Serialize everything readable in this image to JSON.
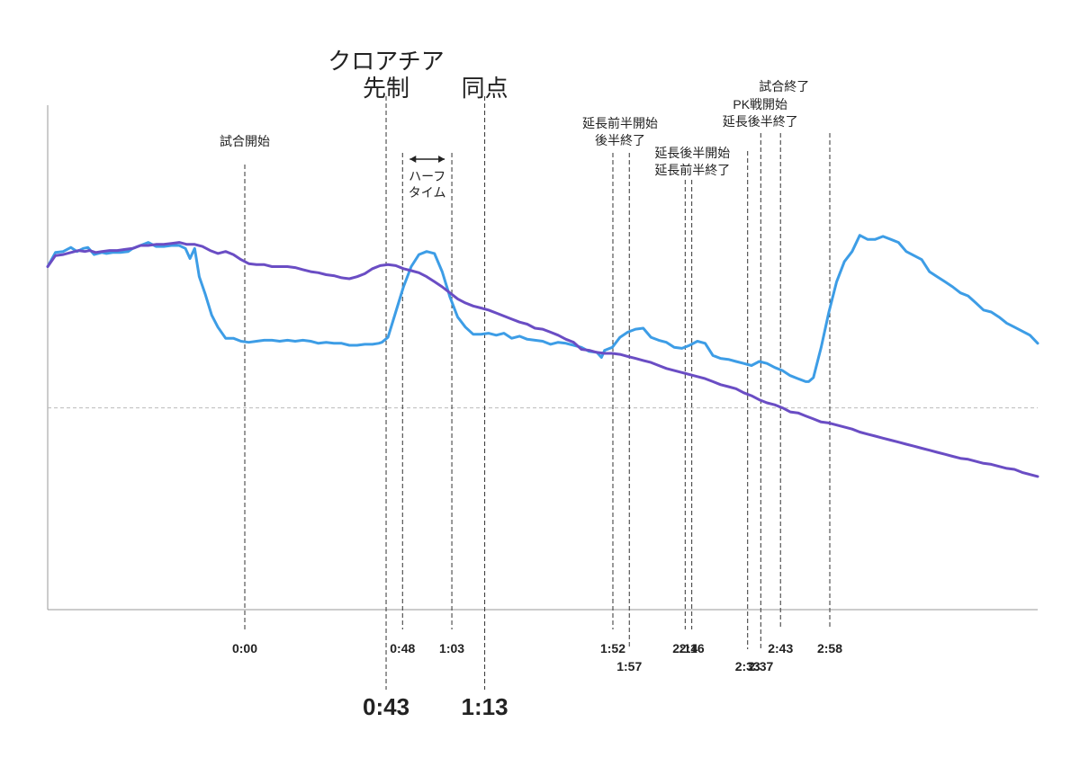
{
  "chart_data": {
    "type": "line",
    "title": "",
    "xlabel": "",
    "ylabel": "",
    "grid": false,
    "colors": {
      "series_a": "#3d9de6",
      "series_b": "#6a4dc4",
      "marker_line": "#333333",
      "reference_line": "#bbbbbb"
    },
    "half_time_label": "ハーフ\nタイム",
    "series": [
      {
        "color": "#3d9de6",
        "points": [
          [
            -50,
            440
          ],
          [
            -45,
            454
          ],
          [
            -40,
            455
          ],
          [
            -35,
            459
          ],
          [
            -31,
            455
          ],
          [
            -27,
            458
          ],
          [
            -24,
            459
          ],
          [
            -20,
            452
          ],
          [
            -15,
            454
          ],
          [
            -12,
            453
          ],
          [
            -8,
            454
          ],
          [
            -3,
            454
          ],
          [
            2,
            455
          ],
          [
            5,
            458
          ],
          [
            10,
            461
          ],
          [
            15,
            464
          ],
          [
            20,
            460
          ],
          [
            25,
            460
          ],
          [
            30,
            461
          ],
          [
            35,
            461
          ],
          [
            39,
            458
          ],
          [
            42,
            448
          ],
          [
            45,
            458
          ],
          [
            48,
            430
          ],
          [
            52,
            412
          ],
          [
            56,
            392
          ],
          [
            60,
            380
          ],
          [
            65,
            369
          ],
          [
            70,
            369
          ],
          [
            75,
            366
          ],
          [
            80,
            365
          ],
          [
            85,
            366
          ],
          [
            90,
            367
          ],
          [
            95,
            367
          ],
          [
            100,
            366
          ],
          [
            105,
            367
          ],
          [
            110,
            366
          ],
          [
            115,
            367
          ],
          [
            120,
            366
          ],
          [
            125,
            364
          ],
          [
            130,
            365
          ],
          [
            135,
            364
          ],
          [
            140,
            364
          ],
          [
            145,
            362
          ],
          [
            150,
            362
          ],
          [
            155,
            363
          ],
          [
            160,
            363
          ],
          [
            164,
            364
          ],
          [
            166,
            365
          ],
          [
            170,
            370
          ],
          [
            175,
            395
          ],
          [
            180,
            420
          ],
          [
            185,
            440
          ],
          [
            190,
            452
          ],
          [
            195,
            455
          ],
          [
            200,
            453
          ],
          [
            205,
            435
          ],
          [
            210,
            410
          ],
          [
            215,
            390
          ],
          [
            220,
            380
          ],
          [
            225,
            373
          ],
          [
            230,
            373
          ],
          [
            235,
            374
          ],
          [
            240,
            372
          ],
          [
            245,
            374
          ],
          [
            250,
            369
          ],
          [
            255,
            371
          ],
          [
            260,
            368
          ],
          [
            265,
            367
          ],
          [
            270,
            366
          ],
          [
            275,
            363
          ],
          [
            280,
            365
          ],
          [
            285,
            364
          ],
          [
            290,
            362
          ],
          [
            295,
            360
          ],
          [
            300,
            356
          ],
          [
            305,
            355
          ],
          [
            308,
            350
          ],
          [
            310,
            357
          ],
          [
            315,
            360
          ],
          [
            320,
            370
          ],
          [
            325,
            375
          ],
          [
            330,
            378
          ],
          [
            335,
            379
          ],
          [
            340,
            370
          ],
          [
            345,
            367
          ],
          [
            350,
            365
          ],
          [
            355,
            360
          ],
          [
            360,
            359
          ],
          [
            365,
            362
          ],
          [
            370,
            366
          ],
          [
            375,
            364
          ],
          [
            380,
            352
          ],
          [
            385,
            349
          ],
          [
            390,
            348
          ],
          [
            395,
            346
          ],
          [
            400,
            344
          ],
          [
            405,
            342
          ],
          [
            410,
            346
          ],
          [
            415,
            344
          ],
          [
            420,
            340
          ],
          [
            425,
            337
          ],
          [
            430,
            332
          ],
          [
            435,
            329
          ],
          [
            440,
            326
          ],
          [
            442,
            326
          ],
          [
            445,
            330
          ],
          [
            450,
            360
          ],
          [
            455,
            395
          ],
          [
            460,
            425
          ],
          [
            465,
            445
          ],
          [
            470,
            455
          ],
          [
            475,
            471
          ],
          [
            480,
            467
          ],
          [
            485,
            467
          ],
          [
            490,
            470
          ],
          [
            495,
            467
          ],
          [
            500,
            464
          ],
          [
            505,
            455
          ],
          [
            510,
            451
          ],
          [
            515,
            447
          ],
          [
            520,
            435
          ],
          [
            525,
            430
          ],
          [
            530,
            425
          ],
          [
            535,
            420
          ],
          [
            540,
            414
          ],
          [
            545,
            411
          ],
          [
            550,
            404
          ],
          [
            555,
            397
          ],
          [
            560,
            395
          ],
          [
            565,
            390
          ],
          [
            570,
            384
          ],
          [
            575,
            380
          ],
          [
            580,
            376
          ],
          [
            585,
            372
          ],
          [
            590,
            364
          ]
        ]
      },
      {
        "color": "#6a4dc4",
        "points": [
          [
            -50,
            440
          ],
          [
            -45,
            451
          ],
          [
            -40,
            452
          ],
          [
            -35,
            454
          ],
          [
            -30,
            456
          ],
          [
            -26,
            455
          ],
          [
            -23,
            456
          ],
          [
            -19,
            454
          ],
          [
            -15,
            455
          ],
          [
            -10,
            456
          ],
          [
            -5,
            456
          ],
          [
            0,
            457
          ],
          [
            5,
            458
          ],
          [
            10,
            461
          ],
          [
            15,
            461
          ],
          [
            20,
            462
          ],
          [
            25,
            462
          ],
          [
            30,
            463
          ],
          [
            35,
            464
          ],
          [
            40,
            462
          ],
          [
            45,
            462
          ],
          [
            50,
            460
          ],
          [
            55,
            456
          ],
          [
            60,
            453
          ],
          [
            65,
            455
          ],
          [
            70,
            452
          ],
          [
            75,
            447
          ],
          [
            80,
            443
          ],
          [
            85,
            442
          ],
          [
            90,
            442
          ],
          [
            95,
            440
          ],
          [
            100,
            440
          ],
          [
            105,
            440
          ],
          [
            110,
            439
          ],
          [
            115,
            437
          ],
          [
            120,
            435
          ],
          [
            125,
            434
          ],
          [
            130,
            432
          ],
          [
            135,
            431
          ],
          [
            140,
            429
          ],
          [
            145,
            428
          ],
          [
            150,
            430
          ],
          [
            155,
            433
          ],
          [
            160,
            438
          ],
          [
            165,
            441
          ],
          [
            170,
            442
          ],
          [
            175,
            441
          ],
          [
            180,
            438
          ],
          [
            185,
            436
          ],
          [
            190,
            434
          ],
          [
            195,
            430
          ],
          [
            200,
            425
          ],
          [
            205,
            420
          ],
          [
            210,
            414
          ],
          [
            215,
            408
          ],
          [
            220,
            404
          ],
          [
            225,
            401
          ],
          [
            230,
            399
          ],
          [
            235,
            397
          ],
          [
            240,
            394
          ],
          [
            245,
            391
          ],
          [
            250,
            388
          ],
          [
            255,
            385
          ],
          [
            260,
            383
          ],
          [
            265,
            379
          ],
          [
            270,
            378
          ],
          [
            275,
            375
          ],
          [
            280,
            372
          ],
          [
            285,
            368
          ],
          [
            290,
            365
          ],
          [
            295,
            358
          ],
          [
            300,
            357
          ],
          [
            305,
            355
          ],
          [
            310,
            354
          ],
          [
            315,
            354
          ],
          [
            320,
            353
          ],
          [
            325,
            351
          ],
          [
            330,
            349
          ],
          [
            335,
            347
          ],
          [
            340,
            345
          ],
          [
            345,
            342
          ],
          [
            350,
            339
          ],
          [
            355,
            337
          ],
          [
            360,
            335
          ],
          [
            365,
            333
          ],
          [
            370,
            331
          ],
          [
            375,
            329
          ],
          [
            380,
            326
          ],
          [
            385,
            323
          ],
          [
            390,
            321
          ],
          [
            395,
            319
          ],
          [
            400,
            315
          ],
          [
            405,
            312
          ],
          [
            410,
            308
          ],
          [
            415,
            305
          ],
          [
            420,
            303
          ],
          [
            425,
            300
          ],
          [
            430,
            296
          ],
          [
            435,
            295
          ],
          [
            440,
            292
          ],
          [
            445,
            289
          ],
          [
            450,
            286
          ],
          [
            455,
            285
          ],
          [
            460,
            283
          ],
          [
            465,
            281
          ],
          [
            470,
            279
          ],
          [
            475,
            276
          ],
          [
            480,
            274
          ],
          [
            485,
            272
          ],
          [
            490,
            270
          ],
          [
            495,
            268
          ],
          [
            500,
            266
          ],
          [
            505,
            264
          ],
          [
            510,
            262
          ],
          [
            515,
            260
          ],
          [
            520,
            258
          ],
          [
            525,
            256
          ],
          [
            530,
            254
          ],
          [
            535,
            252
          ],
          [
            540,
            250
          ],
          [
            545,
            249
          ],
          [
            550,
            247
          ],
          [
            555,
            245
          ],
          [
            560,
            244
          ],
          [
            565,
            242
          ],
          [
            570,
            240
          ],
          [
            575,
            239
          ],
          [
            580,
            236
          ],
          [
            585,
            234
          ],
          [
            590,
            232
          ]
        ]
      }
    ],
    "xlim": [
      -50,
      590
    ],
    "ylim": [
      100,
      600
    ],
    "reference_y": 300,
    "markers": [
      {
        "x": 0,
        "label": "0:00",
        "level": 0,
        "size": "normal"
      },
      {
        "x": 43,
        "label": "0:43",
        "level": 2,
        "size": "big"
      },
      {
        "x": 48,
        "label": "0:48",
        "level": 0,
        "size": "normal"
      },
      {
        "x": 63,
        "label": "1:03",
        "level": 0,
        "size": "normal"
      },
      {
        "x": 73,
        "label": "1:13",
        "level": 2,
        "size": "big"
      },
      {
        "x": 112,
        "label": "1:52",
        "level": 0,
        "size": "normal"
      },
      {
        "x": 117,
        "label": "1:57",
        "level": 1,
        "size": "normal"
      },
      {
        "x": 134,
        "label": "2:14",
        "level": 0,
        "size": "normal"
      },
      {
        "x": 136,
        "label": "2:16",
        "level": 0,
        "size": "normal"
      },
      {
        "x": 153,
        "label": "2:33",
        "level": 1,
        "size": "normal"
      },
      {
        "x": 157,
        "label": "2:37",
        "level": 1,
        "size": "normal"
      },
      {
        "x": 163,
        "label": "2:43",
        "level": 0,
        "size": "normal"
      },
      {
        "x": 178,
        "label": "2:58",
        "level": 0,
        "size": "normal"
      }
    ],
    "annotations": [
      {
        "x": 0,
        "lines": [
          "試合開始"
        ],
        "size": "normal"
      },
      {
        "x": 43,
        "lines": [
          "クロアチア",
          "先制"
        ],
        "size": "big"
      },
      {
        "x": 73,
        "lines": [
          "同点"
        ],
        "size": "big"
      },
      {
        "x": 112,
        "lines": [
          "延長前半開始",
          "後半終了"
        ],
        "size": "normal"
      },
      {
        "x": 134,
        "lines": [
          "延長後半開始",
          "延長前半終了"
        ],
        "size": "normal"
      },
      {
        "x": 153,
        "lines": [
          "PK戦開始",
          "延長後半終了"
        ],
        "size": "normal"
      },
      {
        "x": 163,
        "lines": [
          "試合終了"
        ],
        "size": "normal"
      }
    ]
  }
}
